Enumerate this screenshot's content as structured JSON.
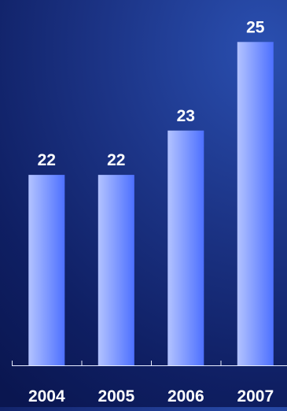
{
  "chart_data": {
    "type": "bar",
    "title": "",
    "xlabel": "",
    "ylabel": "",
    "categories": [
      "2004",
      "2005",
      "2006",
      "2007"
    ],
    "values": [
      22,
      22,
      23,
      25
    ],
    "data_labels": [
      "22",
      "22",
      "23",
      "25"
    ],
    "ylim": [
      17.7,
      25.2
    ],
    "grid": false,
    "legend": "none",
    "colors": {
      "bar_light": "#b3c3ff",
      "bar_dark": "#4d70ff",
      "axis": "#e6ecff",
      "text": "#ffffff"
    }
  }
}
